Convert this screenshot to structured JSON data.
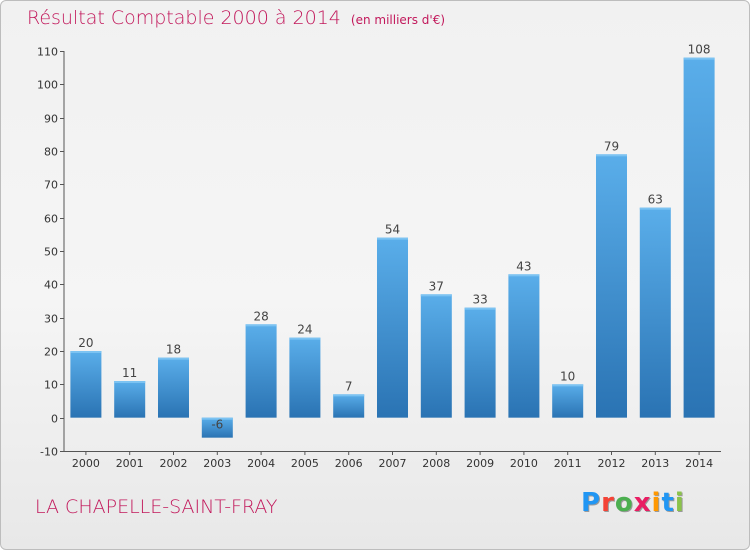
{
  "chart_data": {
    "type": "bar",
    "title": "Résultat Comptable 2000 à 2014",
    "subtitle": "(en milliers d'€)",
    "categories": [
      "2000",
      "2001",
      "2002",
      "2003",
      "2004",
      "2005",
      "2006",
      "2007",
      "2008",
      "2009",
      "2010",
      "2011",
      "2012",
      "2013",
      "2014"
    ],
    "values": [
      20,
      11,
      18,
      -6,
      28,
      24,
      7,
      54,
      37,
      33,
      43,
      10,
      79,
      63,
      108
    ],
    "xlabel": "",
    "ylabel": "",
    "ylim": [
      -10,
      110
    ],
    "yticks": [
      -10,
      0,
      10,
      20,
      30,
      40,
      50,
      60,
      70,
      80,
      90,
      100,
      110
    ],
    "grid": false,
    "bar_color": "#3d8fd1",
    "bar_color_dark": "#2a73b3"
  },
  "footer": {
    "commune": "LA CHAPELLE-SAINT-FRAY",
    "brand": [
      "P",
      "r",
      "o",
      "x",
      "i",
      "t",
      "i"
    ],
    "brand_colors": [
      "#2196f3",
      "#f44336",
      "#4caf50",
      "#e91e63",
      "#ff9800",
      "#2196f3",
      "#8bc34a"
    ]
  }
}
